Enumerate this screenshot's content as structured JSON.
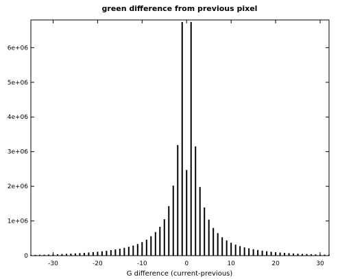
{
  "chart_data": {
    "type": "bar",
    "title": "green difference from previous pixel",
    "xlabel": "G difference (current-previous)",
    "ylabel": "",
    "xlim": [
      -35,
      32
    ],
    "ylim": [
      0,
      6800000
    ],
    "grid": false,
    "x": [
      -35,
      -34,
      -33,
      -32,
      -31,
      -30,
      -29,
      -28,
      -27,
      -26,
      -25,
      -24,
      -23,
      -22,
      -21,
      -20,
      -19,
      -18,
      -17,
      -16,
      -15,
      -14,
      -13,
      -12,
      -11,
      -10,
      -9,
      -8,
      -7,
      -6,
      -5,
      -4,
      -3,
      -2,
      -1,
      0,
      1,
      2,
      3,
      4,
      5,
      6,
      7,
      8,
      9,
      10,
      11,
      12,
      13,
      14,
      15,
      16,
      17,
      18,
      19,
      20,
      21,
      22,
      23,
      24,
      25,
      26,
      27,
      28,
      29,
      30,
      31,
      32
    ],
    "values": [
      20000,
      22000,
      25000,
      28000,
      32000,
      36000,
      41000,
      46000,
      52000,
      58000,
      65000,
      72000,
      80000,
      90000,
      100000,
      112000,
      125000,
      140000,
      160000,
      180000,
      200000,
      225000,
      255000,
      290000,
      335000,
      390000,
      460000,
      560000,
      680000,
      830000,
      1050000,
      1430000,
      2020000,
      3190000,
      6740000,
      2470000,
      6740000,
      3150000,
      1980000,
      1390000,
      1040000,
      800000,
      650000,
      530000,
      440000,
      370000,
      320000,
      275000,
      240000,
      210000,
      185000,
      162000,
      143000,
      127000,
      113000,
      100000,
      89000,
      80000,
      71000,
      63000,
      56000,
      50000,
      45000,
      40000,
      36000,
      32000,
      29000,
      25000
    ],
    "x_ticks": [
      {
        "value": -30,
        "label": "-30"
      },
      {
        "value": -20,
        "label": "-20"
      },
      {
        "value": -10,
        "label": "-10"
      },
      {
        "value": 0,
        "label": "0"
      },
      {
        "value": 10,
        "label": "10"
      },
      {
        "value": 20,
        "label": "20"
      },
      {
        "value": 30,
        "label": "30"
      }
    ],
    "y_ticks": [
      {
        "value": 0,
        "label": "0"
      },
      {
        "value": 1000000,
        "label": "1e+06"
      },
      {
        "value": 2000000,
        "label": "2e+06"
      },
      {
        "value": 3000000,
        "label": "3e+06"
      },
      {
        "value": 4000000,
        "label": "4e+06"
      },
      {
        "value": 5000000,
        "label": "5e+06"
      },
      {
        "value": 6000000,
        "label": "6e+06"
      }
    ],
    "bar_color": "#000000",
    "axis_color": "#000000"
  }
}
